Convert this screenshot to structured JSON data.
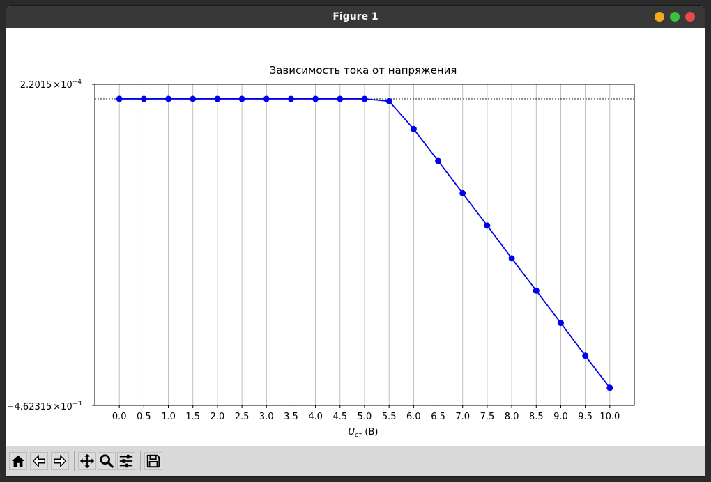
{
  "window": {
    "title": "Figure 1"
  },
  "colors": {
    "series": "#0000ee",
    "titlebar": "#383838",
    "toolbar": "#d9d9d9"
  },
  "toolbar": {
    "buttons": [
      "home-icon",
      "back-arrow-icon",
      "forward-arrow-icon",
      "pan-icon",
      "zoom-icon",
      "configure-subplots-icon",
      "save-icon"
    ]
  },
  "chart_data": {
    "type": "line",
    "title": "Зависимость тока от напряжения",
    "xlabel_main": "U",
    "xlabel_sub": "ст",
    "xlabel_unit": " (В)",
    "ytick_top": {
      "mantissa": "2.2015",
      "exponent": "−4"
    },
    "ytick_bottom": {
      "mantissa": "−4.62315",
      "exponent": "−3"
    },
    "times": "×10",
    "x_ticks": [
      "0.0",
      "0.5",
      "1.0",
      "1.5",
      "2.0",
      "2.5",
      "3.0",
      "3.5",
      "4.0",
      "4.5",
      "5.0",
      "5.5",
      "6.0",
      "6.5",
      "7.0",
      "7.5",
      "8.0",
      "8.5",
      "9.0",
      "9.5",
      "10.0"
    ],
    "x": [
      0.0,
      0.5,
      1.0,
      1.5,
      2.0,
      2.5,
      3.0,
      3.5,
      4.0,
      4.5,
      5.0,
      5.5,
      6.0,
      6.5,
      7.0,
      7.5,
      8.0,
      8.5,
      9.0,
      9.5,
      10.0
    ],
    "y": [
      0.0,
      0.0,
      0.0,
      0.0,
      0.0,
      0.0,
      0.0,
      0.0,
      0.0,
      0.0,
      0.0,
      -3.42e-05,
      -0.0004545,
      -0.0009353,
      -0.0014231,
      -0.0019114,
      -0.0024048,
      -0.0028917,
      -0.0033795,
      -0.0038741,
      -0.004359
    ],
    "xlim": [
      -0.5,
      10.5
    ],
    "ylim": [
      -0.00462315,
      0.00022015
    ],
    "hline_y": 0.0,
    "grid": "x",
    "marker": "circle"
  }
}
